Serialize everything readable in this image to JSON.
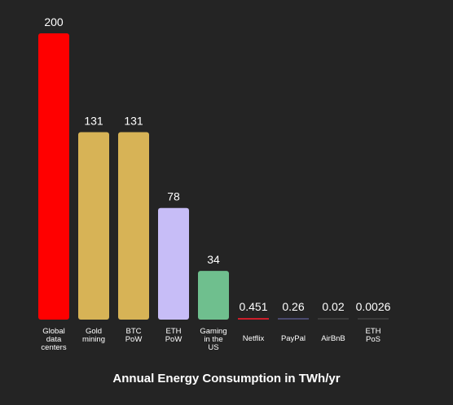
{
  "chart_data": {
    "type": "bar",
    "title": "Annual Energy Consumption in TWh/yr",
    "xlabel": "",
    "ylabel": "",
    "ylim": [
      0,
      200
    ],
    "grid": false,
    "legend": "none",
    "categories": [
      "Global data centers",
      "Gold mining",
      "BTC PoW",
      "ETH PoW",
      "Gaming in the US",
      "Netflix",
      "PayPal",
      "AirBnB",
      "ETH PoS"
    ],
    "category_lines": [
      [
        "Global",
        "data",
        "centers"
      ],
      [
        "Gold",
        "mining"
      ],
      [
        "BTC",
        "PoW"
      ],
      [
        "ETH",
        "PoW"
      ],
      [
        "Gaming",
        "in the",
        "US"
      ],
      [
        "Netflix"
      ],
      [
        "PayPal"
      ],
      [
        "AirBnB"
      ],
      [
        "ETH",
        "PoS"
      ]
    ],
    "values": [
      200,
      131,
      131,
      78,
      34,
      0.451,
      0.26,
      0.02,
      0.0026
    ],
    "value_labels": [
      "200",
      "131",
      "131",
      "78",
      "34",
      "0.451",
      "0.26",
      "0.02",
      "0.0026"
    ],
    "colors": [
      "#ff0000",
      "#d7b356",
      "#d7b356",
      "#c7bdf7",
      "#6fbf8e",
      "#cc1e2b",
      "#4a4a6e",
      "#3a3a3a",
      "#3a3a3a"
    ],
    "background": "#242424",
    "text_color": "#ffffff"
  }
}
